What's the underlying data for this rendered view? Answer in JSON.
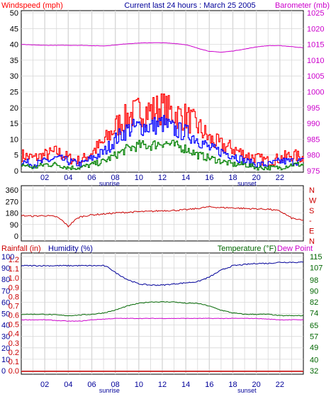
{
  "header": {
    "left_title": "Windspeed (mph)",
    "center_title": "Current last 24 hours : March 25 2005",
    "right_title": "Barometer (mb)"
  },
  "x_axis": {
    "hour_labels": [
      "02",
      "04",
      "06",
      "08",
      "10",
      "12",
      "14",
      "16",
      "18",
      "20",
      "22"
    ],
    "sunrise_label": "sunrise",
    "sunset_label": "sunset"
  },
  "colors": {
    "windspeed": "#ff0000",
    "gust_mid": "#0000ff",
    "gust_low": "#008000",
    "barometer": "#cc00cc",
    "wind_direction": "#cc0000",
    "humidity": "#000099",
    "temperature": "#006600",
    "dewpoint": "#cc00cc",
    "rainfall": "#cc0000",
    "grid": "#d8d8d8"
  },
  "chart_data": [
    {
      "type": "line",
      "title": "Current last 24 hours : March 25 2005",
      "x_range_hours": [
        0,
        24
      ],
      "left_axis": {
        "label": "Windspeed (mph)",
        "ticks": [
          0,
          5,
          10,
          15,
          20,
          25,
          30,
          35,
          40,
          45,
          50
        ],
        "ylim": [
          0,
          50
        ]
      },
      "right_axis": {
        "label": "Barometer (mb)",
        "ticks": [
          975,
          980,
          985,
          990,
          995,
          1000,
          1005,
          1010,
          1015,
          1020,
          1025
        ],
        "ylim": [
          975,
          1025
        ]
      },
      "series": [
        {
          "key": "gust_high",
          "axis": "left",
          "x": [
            0,
            1,
            2,
            3,
            4,
            5,
            6,
            7,
            8,
            9,
            10,
            11,
            12,
            13,
            14,
            15,
            16,
            17,
            18,
            19,
            20,
            21,
            22,
            23,
            24
          ],
          "values": [
            5,
            4,
            5,
            6,
            4,
            3,
            6,
            9,
            14,
            17,
            19,
            19,
            20,
            18,
            17,
            14,
            10,
            8,
            7,
            5,
            4,
            3,
            4,
            5,
            4
          ]
        },
        {
          "key": "gust_mid",
          "axis": "left",
          "x": [
            0,
            1,
            2,
            3,
            4,
            5,
            6,
            7,
            8,
            9,
            10,
            11,
            12,
            13,
            14,
            15,
            16,
            17,
            18,
            19,
            20,
            21,
            22,
            23,
            24
          ],
          "values": [
            3,
            2,
            3,
            4,
            3,
            2,
            4,
            6,
            10,
            13,
            14,
            14,
            15,
            13,
            12,
            10,
            7,
            6,
            5,
            3,
            2,
            2,
            3,
            3,
            3
          ]
        },
        {
          "key": "gust_low",
          "axis": "left",
          "x": [
            0,
            1,
            2,
            3,
            4,
            5,
            6,
            7,
            8,
            9,
            10,
            11,
            12,
            13,
            14,
            15,
            16,
            17,
            18,
            19,
            20,
            21,
            22,
            23,
            24
          ],
          "values": [
            2,
            1,
            2,
            2,
            1,
            1,
            2,
            3,
            5,
            7,
            8,
            8,
            9,
            8,
            7,
            5,
            4,
            3,
            2,
            2,
            1,
            1,
            1,
            2,
            2
          ]
        },
        {
          "key": "barometer",
          "axis": "right",
          "x": [
            0,
            1,
            2,
            3,
            4,
            5,
            6,
            7,
            8,
            9,
            10,
            11,
            12,
            13,
            14,
            15,
            16,
            17,
            18,
            19,
            20,
            21,
            22,
            23,
            24
          ],
          "values": [
            1015,
            1014.8,
            1014.7,
            1014.7,
            1014.7,
            1014.7,
            1014.6,
            1014.5,
            1014.8,
            1015.2,
            1015.4,
            1015.5,
            1015.5,
            1015.3,
            1014.9,
            1013.8,
            1012.8,
            1012.5,
            1012.9,
            1013.5,
            1014.2,
            1014.6,
            1014.6,
            1014.3,
            1013.9
          ]
        }
      ]
    },
    {
      "type": "line",
      "x_range_hours": [
        0,
        24
      ],
      "left_axis": {
        "ticks": [
          0,
          90,
          180,
          270,
          360
        ],
        "ylim": [
          0,
          360
        ]
      },
      "right_axis": {
        "ticks": [
          "N",
          "W",
          "S",
          "-",
          "E",
          "N"
        ]
      },
      "series": [
        {
          "key": "wind_direction",
          "axis": "left",
          "x": [
            0,
            1,
            2,
            3,
            3.5,
            4,
            4.5,
            5,
            6,
            7,
            8,
            9,
            10,
            11,
            12,
            13,
            14,
            15,
            16,
            17,
            18,
            19,
            20,
            21,
            22,
            23,
            24
          ],
          "values": [
            160,
            155,
            160,
            150,
            120,
            75,
            120,
            150,
            165,
            172,
            180,
            185,
            190,
            192,
            198,
            200,
            205,
            215,
            228,
            222,
            220,
            215,
            212,
            210,
            195,
            140,
            120
          ]
        }
      ]
    },
    {
      "type": "line",
      "x_range_hours": [
        0,
        24
      ],
      "left_axis_rain": {
        "label": "Rainfall (in)",
        "ticks": [
          "0.0",
          "0.1",
          "0.2",
          "0.3",
          "0.4",
          "0.5",
          "0.6",
          "0.7",
          "0.8",
          "0.9",
          "1.0",
          "1.1",
          "1.2"
        ]
      },
      "left_axis_humidity": {
        "label": "Humidity (%)",
        "ticks": [
          0,
          10,
          20,
          30,
          40,
          50,
          60,
          70,
          80,
          90,
          100
        ],
        "ylim": [
          0,
          100
        ]
      },
      "right_axis": {
        "label": "Temperature (°F)",
        "ticks": [
          32,
          40,
          49,
          57,
          65,
          74,
          82,
          90,
          98,
          107,
          115
        ],
        "ylim": [
          32,
          115
        ]
      },
      "right_title2": "Dew Point",
      "series": [
        {
          "key": "humidity",
          "axis": "humidity",
          "x": [
            0,
            2,
            4,
            6,
            7,
            7.5,
            8,
            9,
            10,
            11,
            12,
            13,
            14,
            15,
            16,
            17,
            18,
            19,
            20,
            21,
            22,
            23,
            24
          ],
          "values": [
            92,
            92,
            92,
            92,
            92,
            90,
            86,
            80,
            76,
            75,
            75,
            76,
            77,
            78,
            82,
            88,
            92,
            93,
            94,
            94,
            95,
            95,
            95
          ]
        },
        {
          "key": "temperature",
          "axis": "temperature",
          "x": [
            0,
            2,
            4,
            6,
            7,
            8,
            9,
            10,
            11,
            12,
            13,
            14,
            15,
            16,
            17,
            18,
            19,
            20,
            21,
            22,
            23,
            24
          ],
          "values": [
            73,
            73,
            72,
            73,
            74,
            76,
            79,
            81,
            82,
            82,
            82,
            81,
            81,
            79,
            76,
            74,
            73,
            73,
            73,
            72,
            72,
            72
          ]
        },
        {
          "key": "dewpoint",
          "axis": "temperature",
          "x": [
            0,
            2,
            4,
            5,
            6,
            8,
            10,
            12,
            14,
            16,
            18,
            20,
            22,
            24
          ],
          "values": [
            69,
            69,
            68,
            68,
            69,
            70,
            70,
            70,
            70,
            70,
            70,
            70,
            69,
            69
          ]
        },
        {
          "key": "rainfall",
          "axis": "humidity",
          "x": [
            0,
            24
          ],
          "values": [
            0,
            0
          ]
        }
      ]
    }
  ]
}
